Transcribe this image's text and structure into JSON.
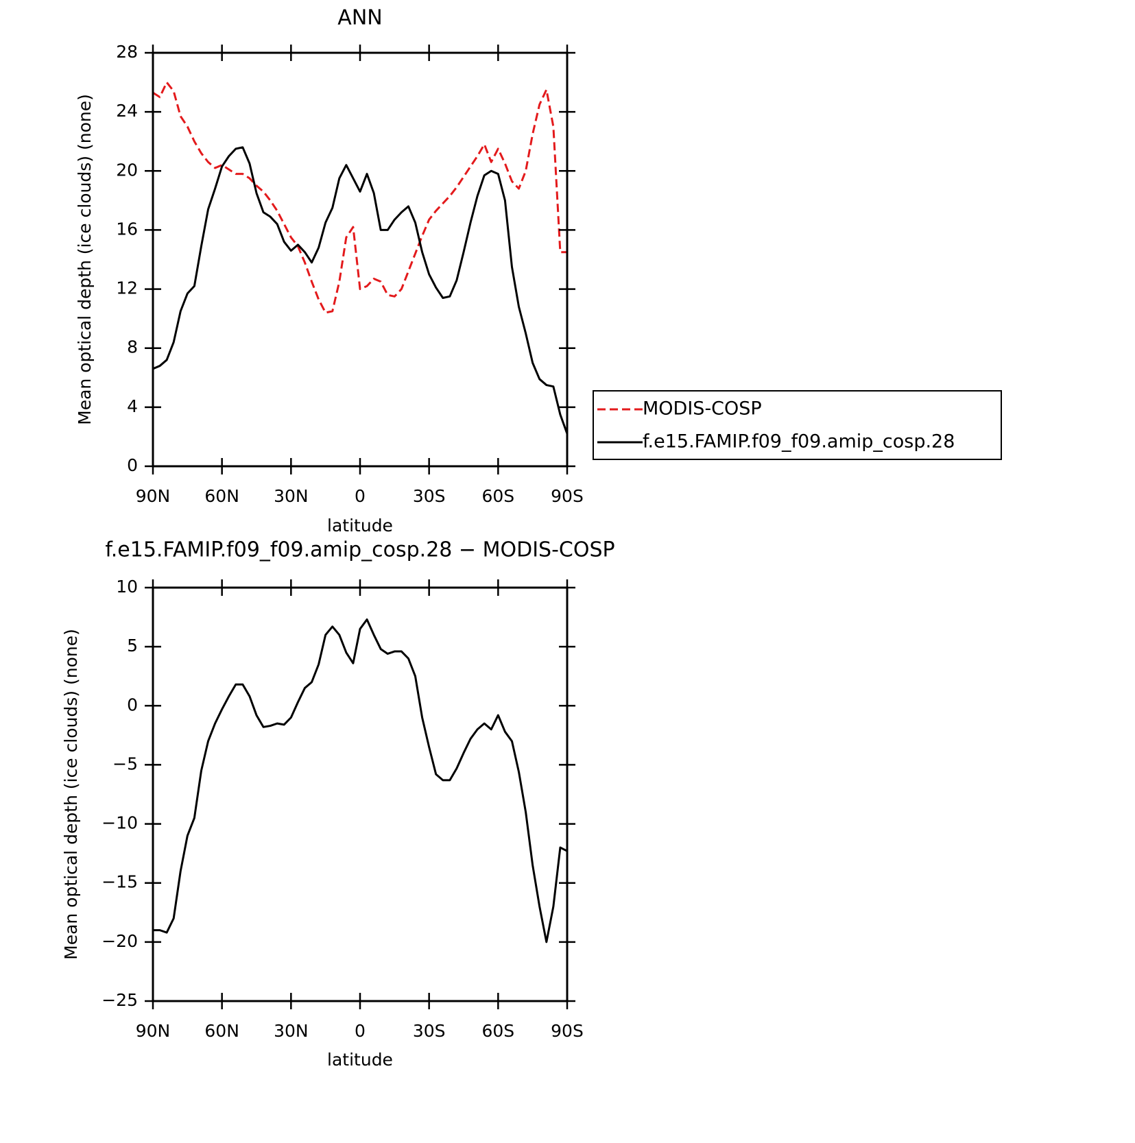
{
  "chart_data": [
    {
      "type": "line",
      "title": "ANN",
      "xlabel": "latitude",
      "ylabel": "Mean optical depth (ice clouds) (none)",
      "x": [
        90,
        87,
        84,
        81,
        78,
        75,
        72,
        69,
        66,
        63,
        60,
        57,
        54,
        51,
        48,
        45,
        42,
        39,
        36,
        33,
        30,
        27,
        24,
        21,
        18,
        15,
        12,
        9,
        6,
        3,
        0,
        -3,
        -6,
        -9,
        -12,
        -15,
        -18,
        -21,
        -24,
        -27,
        -30,
        -33,
        -36,
        -39,
        -42,
        -45,
        -48,
        -51,
        -54,
        -57,
        -60,
        -63,
        -66,
        -69,
        -72,
        -75,
        -78,
        -81,
        -84,
        -87,
        -90
      ],
      "series": [
        {
          "name": "MODIS-COSP",
          "color": "#e31a1c",
          "style": "dashed",
          "values": [
            25.3,
            25.0,
            26.0,
            25.4,
            23.7,
            23.0,
            22.0,
            21.2,
            20.6,
            20.2,
            20.4,
            20.1,
            19.8,
            19.8,
            19.5,
            19.0,
            18.6,
            18.0,
            17.3,
            16.4,
            15.5,
            14.9,
            13.8,
            12.5,
            11.3,
            10.4,
            10.5,
            12.5,
            15.5,
            16.2,
            12.0,
            12.2,
            12.7,
            12.5,
            11.6,
            11.5,
            12.0,
            13.2,
            14.4,
            15.6,
            16.7,
            17.3,
            17.8,
            18.3,
            18.9,
            19.6,
            20.3,
            21.0,
            21.8,
            20.6,
            21.5,
            20.5,
            19.3,
            18.8,
            20.0,
            22.5,
            24.5,
            25.5,
            23.0,
            14.5,
            14.5
          ]
        },
        {
          "name": "f.e15.FAMIP.f09_f09.amip_cosp.28",
          "color": "#000000",
          "style": "solid",
          "values": [
            6.6,
            6.8,
            7.2,
            8.4,
            10.5,
            11.7,
            12.2,
            14.9,
            17.4,
            18.8,
            20.3,
            21.0,
            21.5,
            21.6,
            20.5,
            18.5,
            17.2,
            16.9,
            16.4,
            15.2,
            14.6,
            15.0,
            14.5,
            13.8,
            14.8,
            16.5,
            17.5,
            19.5,
            20.4,
            19.5,
            18.6,
            19.8,
            18.5,
            16.0,
            16.0,
            16.7,
            17.2,
            17.6,
            16.5,
            14.5,
            13.0,
            12.1,
            11.4,
            11.5,
            12.6,
            14.5,
            16.5,
            18.3,
            19.7,
            20.0,
            19.8,
            18.0,
            13.5,
            10.8,
            9.0,
            7.0,
            5.9,
            5.5,
            5.4,
            3.5,
            2.2
          ]
        }
      ],
      "xlim": [
        90,
        -90
      ],
      "xticks": [
        {
          "value": 90,
          "label": "90N"
        },
        {
          "value": 60,
          "label": "60N"
        },
        {
          "value": 30,
          "label": "30N"
        },
        0,
        {
          "value": -30,
          "label": "30S"
        },
        {
          "value": -60,
          "label": "60S"
        },
        {
          "value": -90,
          "label": "90S"
        }
      ],
      "ylim": [
        0,
        28
      ],
      "yticks": [
        0,
        4,
        8,
        12,
        16,
        20,
        24,
        28
      ],
      "legend": "right"
    },
    {
      "type": "line",
      "title": "f.e15.FAMIP.f09_f09.amip_cosp.28 − MODIS-COSP",
      "xlabel": "latitude",
      "ylabel": "Mean optical depth (ice clouds) (none)",
      "x": [
        90,
        87,
        84,
        81,
        78,
        75,
        72,
        69,
        66,
        63,
        60,
        57,
        54,
        51,
        48,
        45,
        42,
        39,
        36,
        33,
        30,
        27,
        24,
        21,
        18,
        15,
        12,
        9,
        6,
        3,
        0,
        -3,
        -6,
        -9,
        -12,
        -15,
        -18,
        -21,
        -24,
        -27,
        -30,
        -33,
        -36,
        -39,
        -42,
        -45,
        -48,
        -51,
        -54,
        -57,
        -60,
        -63,
        -66,
        -69,
        -72,
        -75,
        -78,
        -81,
        -84,
        -87,
        -90
      ],
      "series": [
        {
          "color": "#000000",
          "style": "solid",
          "values": [
            -19.0,
            -19.0,
            -19.2,
            -18.0,
            -14.0,
            -11.0,
            -9.5,
            -5.5,
            -3.0,
            -1.5,
            -0.3,
            0.8,
            1.8,
            1.8,
            0.8,
            -0.8,
            -1.8,
            -1.7,
            -1.5,
            -1.6,
            -1.0,
            0.3,
            1.5,
            2.0,
            3.5,
            6.0,
            6.7,
            6.0,
            4.5,
            3.6,
            6.5,
            7.3,
            6.0,
            4.8,
            4.4,
            4.6,
            4.6,
            4.0,
            2.5,
            -1.0,
            -3.5,
            -5.8,
            -6.3,
            -6.3,
            -5.3,
            -4.0,
            -2.8,
            -2.0,
            -1.5,
            -2.0,
            -0.8,
            -2.2,
            -3.0,
            -5.6,
            -9.0,
            -13.5,
            -17.0,
            -20.0,
            -17.0,
            -12.0,
            -12.3
          ]
        }
      ],
      "xlim": [
        90,
        -90
      ],
      "xticks": [
        {
          "value": 90,
          "label": "90N"
        },
        {
          "value": 60,
          "label": "60N"
        },
        {
          "value": 30,
          "label": "30N"
        },
        0,
        {
          "value": -30,
          "label": "30S"
        },
        {
          "value": -60,
          "label": "60S"
        },
        {
          "value": -90,
          "label": "90S"
        }
      ],
      "ylim": [
        -25,
        10
      ],
      "yticks": [
        {
          "value": -25,
          "label": "−25"
        },
        {
          "value": -20,
          "label": "−20"
        },
        {
          "value": -15,
          "label": "−15"
        },
        {
          "value": -10,
          "label": "−10"
        },
        {
          "value": -5,
          "label": "−5"
        },
        0,
        5,
        10
      ]
    }
  ]
}
